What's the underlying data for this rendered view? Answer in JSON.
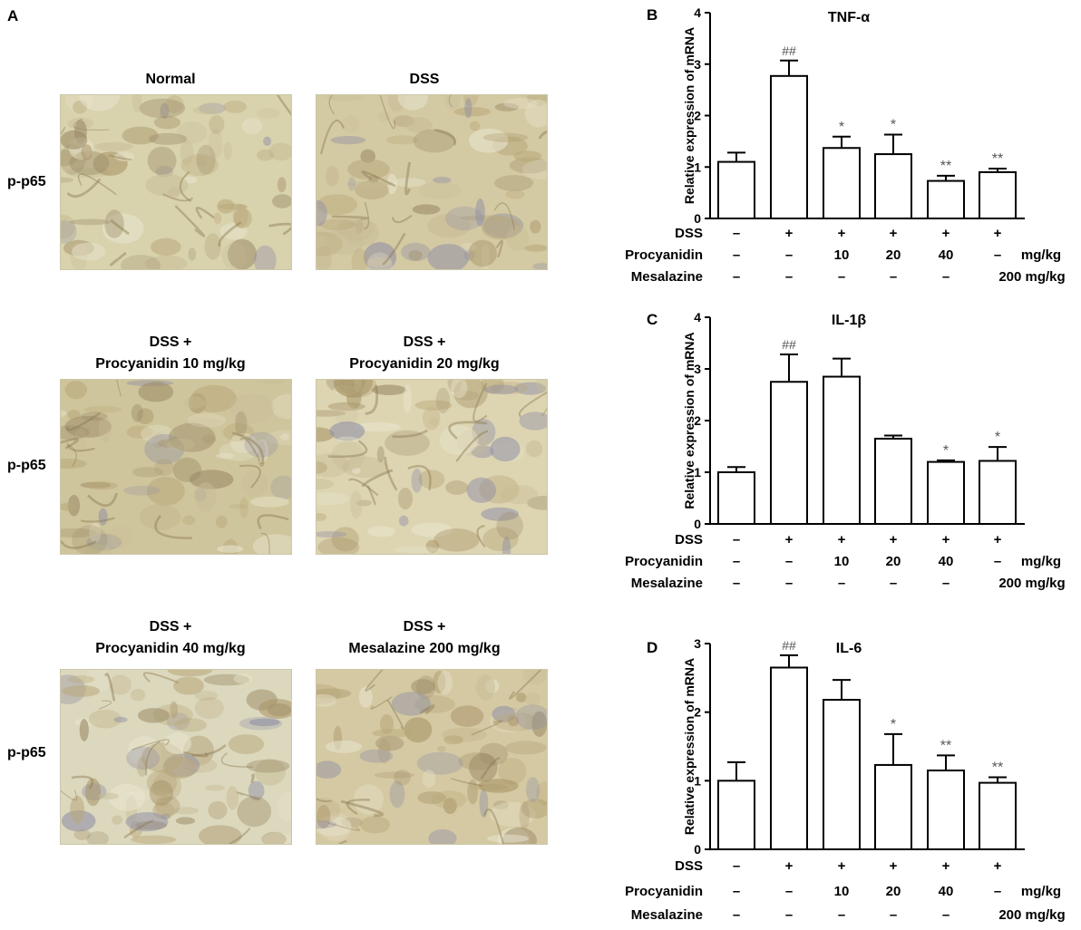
{
  "panel_a": {
    "letter": "A",
    "row_label": "p-p65",
    "images": [
      {
        "title_lines": [
          "Normal"
        ],
        "tint": "#d8d2ad"
      },
      {
        "title_lines": [
          "DSS"
        ],
        "tint": "#d3c9a2"
      },
      {
        "title_lines": [
          "DSS +",
          "Procyanidin 10 mg/kg"
        ],
        "tint": "#cfc59c"
      },
      {
        "title_lines": [
          "DSS +",
          "Procyanidin 20 mg/kg"
        ],
        "tint": "#ddd5b2"
      },
      {
        "title_lines": [
          "DSS +",
          "Procyanidin 40 mg/kg"
        ],
        "tint": "#dcd8bd"
      },
      {
        "title_lines": [
          "DSS +",
          "Mesalazine 200 mg/kg"
        ],
        "tint": "#d4c9a2"
      }
    ]
  },
  "treatment_table": {
    "row_labels": [
      "DSS",
      "Procyanidin",
      "Mesalazine"
    ],
    "unit": "mg/kg"
  },
  "chart_data": [
    {
      "panel": "B",
      "type": "bar",
      "title": "TNF-α",
      "ylabel": "Relative expression of mRNA",
      "ylim": [
        0,
        4
      ],
      "yticks": [
        0,
        1,
        2,
        3,
        4
      ],
      "values": [
        1.1,
        2.77,
        1.37,
        1.25,
        0.73,
        0.9
      ],
      "errors": [
        0.18,
        0.3,
        0.22,
        0.38,
        0.1,
        0.07
      ],
      "annotations": [
        "",
        "##",
        "*",
        "*",
        "**",
        "**"
      ],
      "conditions": {
        "DSS": [
          "–",
          "+",
          "+",
          "+",
          "+",
          "+"
        ],
        "Procyanidin": [
          "–",
          "–",
          "10",
          "20",
          "40",
          "–"
        ],
        "Mesalazine": [
          "–",
          "–",
          "–",
          "–",
          "–",
          "200 mg/kg"
        ]
      }
    },
    {
      "panel": "C",
      "type": "bar",
      "title": "IL-1β",
      "ylabel": "Relative expression of mRNA",
      "ylim": [
        0,
        4
      ],
      "yticks": [
        0,
        1,
        2,
        3,
        4
      ],
      "values": [
        1.0,
        2.75,
        2.85,
        1.65,
        1.2,
        1.22
      ],
      "errors": [
        0.1,
        0.53,
        0.35,
        0.06,
        0.03,
        0.27
      ],
      "annotations": [
        "",
        "##",
        "",
        "",
        "*",
        "*"
      ],
      "conditions": {
        "DSS": [
          "–",
          "+",
          "+",
          "+",
          "+",
          "+"
        ],
        "Procyanidin": [
          "–",
          "–",
          "10",
          "20",
          "40",
          "–"
        ],
        "Mesalazine": [
          "–",
          "–",
          "–",
          "–",
          "–",
          "200 mg/kg"
        ]
      }
    },
    {
      "panel": "D",
      "type": "bar",
      "title": "IL-6",
      "ylabel": "Relative expression of mRNA",
      "ylim": [
        0,
        3
      ],
      "yticks": [
        0,
        1,
        2,
        3
      ],
      "values": [
        1.0,
        2.65,
        2.18,
        1.23,
        1.15,
        0.97
      ],
      "errors": [
        0.27,
        0.18,
        0.29,
        0.45,
        0.22,
        0.08
      ],
      "annotations": [
        "",
        "##",
        "",
        "*",
        "**",
        "**"
      ],
      "conditions": {
        "DSS": [
          "–",
          "+",
          "+",
          "+",
          "+",
          "+"
        ],
        "Procyanidin": [
          "–",
          "–",
          "10",
          "20",
          "40",
          "–"
        ],
        "Mesalazine": [
          "–",
          "–",
          "–",
          "–",
          "–",
          "200 mg/kg"
        ]
      }
    }
  ]
}
